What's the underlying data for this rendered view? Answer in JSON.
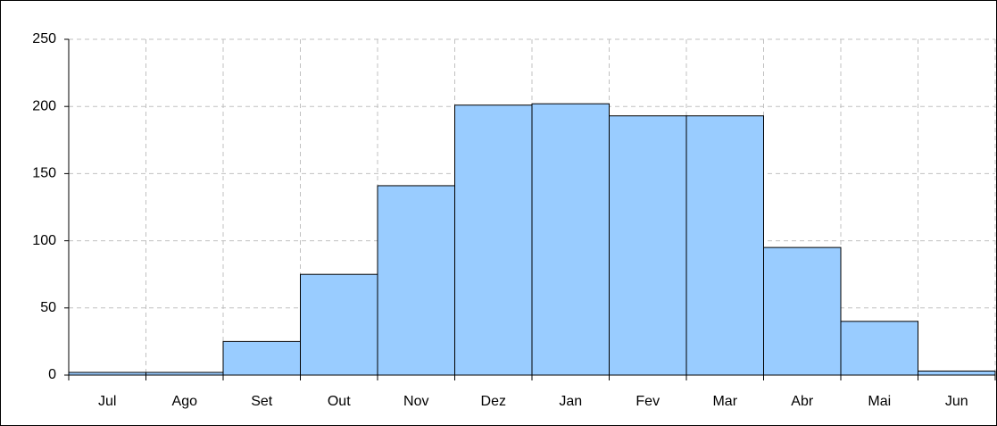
{
  "chart_data": {
    "type": "bar",
    "categories": [
      "Jul",
      "Ago",
      "Set",
      "Out",
      "Nov",
      "Dez",
      "Jan",
      "Fev",
      "Mar",
      "Abr",
      "Mai",
      "Jun"
    ],
    "values": [
      2,
      2,
      25,
      75,
      141,
      201,
      202,
      193,
      193,
      95,
      40,
      3
    ],
    "color": "#99ccff",
    "ylim": [
      0,
      250
    ],
    "yticks": [
      0,
      50,
      100,
      150,
      200,
      250
    ],
    "grid": true
  }
}
